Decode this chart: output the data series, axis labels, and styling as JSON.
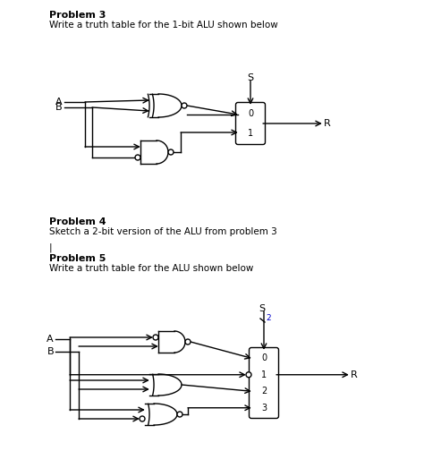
{
  "bg_color": "#ffffff",
  "line_color": "#000000",
  "problem3_title": "Problem 3",
  "problem3_desc": "Write a truth table for the 1-bit ALU shown below",
  "problem4_title": "Problem 4",
  "problem4_desc": "Sketch a 2-bit version of the ALU from problem 3",
  "problem4_pipe": "|",
  "problem5_title": "Problem 5",
  "problem5_desc": "Write a truth table for the ALU shown below",
  "font_size_title": 8,
  "font_size_body": 7.5,
  "font_size_gate": 7
}
